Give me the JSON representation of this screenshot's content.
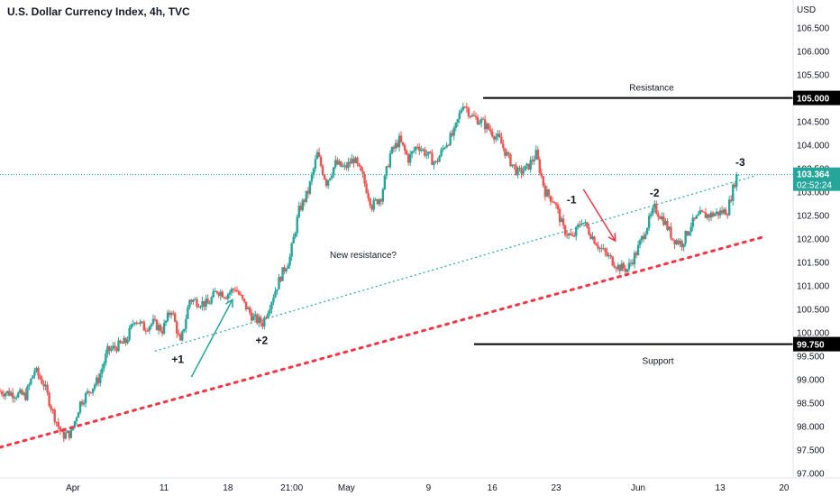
{
  "chart_data": {
    "type": "candlestick",
    "title": "U.S. Dollar Currency Index, 4h, TVC",
    "currency_label": "USD",
    "ylim": [
      96.8,
      106.8
    ],
    "y_ticks": [
      "97.000",
      "97.500",
      "98.000",
      "98.500",
      "99.000",
      "99.500",
      "100.000",
      "100.500",
      "101.000",
      "101.500",
      "102.000",
      "102.500",
      "103.000",
      "103.500",
      "104.000",
      "104.500",
      "105.000",
      "105.500",
      "106.000",
      "106.500"
    ],
    "x_ticks": [
      "Apr",
      "11",
      "18",
      "21:00",
      "May",
      "9",
      "16",
      "23",
      "Jun",
      "13",
      "20"
    ],
    "x_tick_days": [
      1,
      11,
      18,
      25,
      31,
      40,
      47,
      54,
      63,
      72,
      79
    ],
    "x_range_days": [
      -7,
      80
    ],
    "current_price": {
      "label": "103.364",
      "value": 103.364,
      "countdown": "02:52:24",
      "color": "#26a69a"
    },
    "price_path": [
      {
        "day": -7,
        "price": 98.75
      },
      {
        "day": -4,
        "price": 98.65
      },
      {
        "day": -3,
        "price": 99.2
      },
      {
        "day": -2,
        "price": 98.9
      },
      {
        "day": -1,
        "price": 98.3
      },
      {
        "day": 0,
        "price": 97.8
      },
      {
        "day": 1,
        "price": 97.85
      },
      {
        "day": 2,
        "price": 98.5
      },
      {
        "day": 4,
        "price": 99.0
      },
      {
        "day": 5,
        "price": 99.6
      },
      {
        "day": 7,
        "price": 99.8
      },
      {
        "day": 8,
        "price": 100.3
      },
      {
        "day": 9,
        "price": 100.1
      },
      {
        "day": 10,
        "price": 100.2
      },
      {
        "day": 11,
        "price": 100.05
      },
      {
        "day": 12,
        "price": 100.5
      },
      {
        "day": 13,
        "price": 99.75
      },
      {
        "day": 14,
        "price": 100.7
      },
      {
        "day": 16,
        "price": 100.6
      },
      {
        "day": 17,
        "price": 100.9
      },
      {
        "day": 18,
        "price": 100.8
      },
      {
        "day": 19,
        "price": 100.95
      },
      {
        "day": 20,
        "price": 100.6
      },
      {
        "day": 21,
        "price": 100.3
      },
      {
        "day": 22,
        "price": 100.2
      },
      {
        "day": 23,
        "price": 100.7
      },
      {
        "day": 24,
        "price": 101.2
      },
      {
        "day": 25,
        "price": 101.6
      },
      {
        "day": 26,
        "price": 102.6
      },
      {
        "day": 27,
        "price": 103.0
      },
      {
        "day": 28,
        "price": 103.8
      },
      {
        "day": 29,
        "price": 103.2
      },
      {
        "day": 30,
        "price": 103.6
      },
      {
        "day": 31,
        "price": 103.5
      },
      {
        "day": 32,
        "price": 103.7
      },
      {
        "day": 33,
        "price": 103.3
      },
      {
        "day": 34,
        "price": 102.7
      },
      {
        "day": 35,
        "price": 102.9
      },
      {
        "day": 36,
        "price": 103.8
      },
      {
        "day": 37,
        "price": 104.1
      },
      {
        "day": 38,
        "price": 103.7
      },
      {
        "day": 39,
        "price": 104.0
      },
      {
        "day": 40,
        "price": 103.8
      },
      {
        "day": 41,
        "price": 103.6
      },
      {
        "day": 42,
        "price": 104.0
      },
      {
        "day": 43,
        "price": 104.25
      },
      {
        "day": 44,
        "price": 104.9
      },
      {
        "day": 45,
        "price": 104.6
      },
      {
        "day": 46,
        "price": 104.5
      },
      {
        "day": 47,
        "price": 104.3
      },
      {
        "day": 48,
        "price": 104.1
      },
      {
        "day": 49,
        "price": 103.7
      },
      {
        "day": 50,
        "price": 103.4
      },
      {
        "day": 51,
        "price": 103.5
      },
      {
        "day": 52,
        "price": 103.8
      },
      {
        "day": 53,
        "price": 103.0
      },
      {
        "day": 54,
        "price": 102.8
      },
      {
        "day": 55,
        "price": 102.2
      },
      {
        "day": 56,
        "price": 102.0
      },
      {
        "day": 57,
        "price": 102.4
      },
      {
        "day": 58,
        "price": 102.1
      },
      {
        "day": 59,
        "price": 101.8
      },
      {
        "day": 60,
        "price": 101.6
      },
      {
        "day": 61,
        "price": 101.4
      },
      {
        "day": 62,
        "price": 101.35
      },
      {
        "day": 63,
        "price": 101.7
      },
      {
        "day": 64,
        "price": 102.2
      },
      {
        "day": 65,
        "price": 102.65
      },
      {
        "day": 66,
        "price": 102.4
      },
      {
        "day": 67,
        "price": 102.0
      },
      {
        "day": 68,
        "price": 101.9
      },
      {
        "day": 69,
        "price": 102.3
      },
      {
        "day": 70,
        "price": 102.5
      },
      {
        "day": 71,
        "price": 102.5
      },
      {
        "day": 72,
        "price": 102.55
      },
      {
        "day": 73,
        "price": 102.6
      },
      {
        "day": 74,
        "price": 103.364
      }
    ],
    "lines": {
      "resistance": {
        "label": "Resistance",
        "price_label": "105.000",
        "value": 105.0,
        "from_day": 46
      },
      "support": {
        "label": "Support",
        "price_label": "99.750",
        "value": 99.75,
        "from_day": 45
      },
      "support_trend": {
        "from": {
          "day": -7,
          "price": 97.55
        },
        "to": {
          "day": 77,
          "price": 102.05
        },
        "color": "#f23645"
      },
      "resistance_trend": {
        "label": "New resistance?",
        "from": {
          "day": 10,
          "price": 99.6
        },
        "to": {
          "day": 76,
          "price": 103.35
        },
        "color": "#26a69a"
      }
    },
    "annotations": [
      {
        "text": "+1",
        "day": 12.5,
        "price": 99.35
      },
      {
        "text": "+2",
        "day": 21.7,
        "price": 99.75
      },
      {
        "text": "-1",
        "day": 55.7,
        "price": 102.75
      },
      {
        "text": "-2",
        "day": 64.8,
        "price": 102.9
      },
      {
        "text": "-3",
        "day": 74.2,
        "price": 103.55
      }
    ],
    "arrows": [
      {
        "color": "#26a69a",
        "from": {
          "day": 14,
          "price": 99.05
        },
        "to": {
          "day": 18.5,
          "price": 100.7
        }
      },
      {
        "color": "#f23645",
        "from": {
          "day": 57,
          "price": 103.05
        },
        "to": {
          "day": 60.5,
          "price": 101.95
        }
      }
    ]
  }
}
